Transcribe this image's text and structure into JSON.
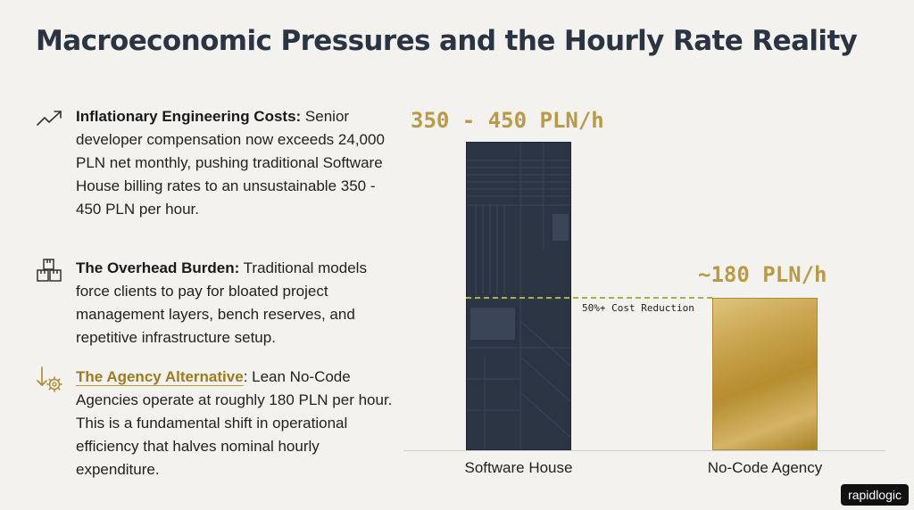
{
  "title": "Macroeconomic Pressures and the Hourly Rate Reality",
  "points": [
    {
      "icon": "trending-up-icon",
      "heading": "Inflationary Engineering Costs:",
      "body": " Senior developer compensation now exceeds 24,000 PLN net monthly, pushing traditional Software House billing rates to an unsustainable 350 - 450 PLN per hour."
    },
    {
      "icon": "boxes-icon",
      "heading": "The Overhead Burden:",
      "body": " Traditional models force clients to pay for bloated project management layers, bench reserves, and repetitive infrastructure setup."
    },
    {
      "icon": "arrow-down-gear-icon",
      "heading": "The Agency Alternative",
      "body": ": Lean No-Code Agencies operate at roughly 180 PLN per hour. This is a fundamental shift in operational efficiency that halves nominal hourly expenditure."
    }
  ],
  "chart_data": {
    "type": "bar",
    "categories": [
      "Software House",
      "No-Code Agency"
    ],
    "value_labels": [
      "350 - 450 PLN/h",
      "~180 PLN/h"
    ],
    "values": [
      365,
      180
    ],
    "value_range_software_house": [
      350,
      450
    ],
    "annotation": "50%+ Cost Reduction",
    "colors": [
      "#2b3443",
      "#c8a24c"
    ],
    "ylim": [
      0,
      365
    ],
    "grid": false
  },
  "brand": "rapidlogic"
}
